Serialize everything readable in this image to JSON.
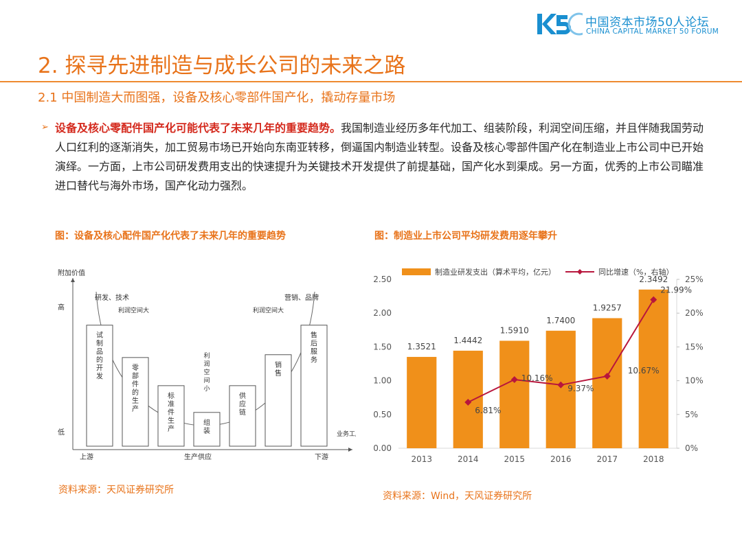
{
  "logo": {
    "mark": "K5",
    "name_cn": "中国资本市场50人论坛",
    "name_en": "CHINA CAPITAL MARKET 50 FORUM",
    "color": "#1a8fd0"
  },
  "header": {
    "title": "2. 探寻先进制造与成长公司的未来之路",
    "subtitle": "2.1 中国制造大而图强，设备及核心零部件国产化，撬动存量市场",
    "accent_color": "#e8731a"
  },
  "body": {
    "bullet": "➢",
    "highlight": "设备及核心零配件国产化可能代表了未来几年的重要趋势。",
    "text": "我国制造业经历多年代加工、组装阶段，利润空间压缩，并且伴随我国劳动人口红利的逐渐消失，加工贸易市场已开始向东南亚转移，倒逼国内制造业转型。设备及核心零部件国产化在制造业上市公司中已开始演绎。一方面，上市公司研发费用支出的快速提升为关键技术开发提供了前提基础，国产化水到渠成。另一方面，优秀的上市公司瞄准进口替代与海外市场，国产化动力强烈。"
  },
  "left_figure": {
    "caption": "图：设备及核心配件国产化代表了未来几年的重要趋势",
    "source": "资料来源：天风证券研究所",
    "y_axis_label": "附加价值",
    "y_high": "高",
    "y_low": "低",
    "x_axis_label": "业务工序",
    "x_left": "上游",
    "x_mid": "生产供应",
    "x_right": "下游",
    "top_left_label": "研发、技术",
    "top_right_label": "营销、品牌",
    "left_profit_label": "利润空间大",
    "right_profit_label": "利润空间大",
    "bars": [
      {
        "label": "试制品的开发",
        "level": 0.86
      },
      {
        "label": "零部件的生产",
        "level": 0.63
      },
      {
        "label": "标准件生产",
        "level": 0.43
      },
      {
        "label": "组装",
        "level": 0.24
      },
      {
        "label": "供应链",
        "level": 0.43
      },
      {
        "label": "销售",
        "level": 0.65
      },
      {
        "label": "售后服务",
        "level": 0.86
      }
    ],
    "center_label": "利润空间小"
  },
  "chart_data": {
    "type": "bar",
    "title": "图：制造业上市公司平均研发费用逐年攀升",
    "source": "资料来源：Wind，天风证券研究所",
    "categories": [
      "2013",
      "2014",
      "2015",
      "2016",
      "2017",
      "2018"
    ],
    "series": [
      {
        "name": "制造业研发支出（算术平均，亿元）",
        "type": "bar",
        "axis": "left",
        "color": "#f0901a",
        "values": [
          1.3521,
          1.4442,
          1.591,
          1.74,
          1.9257,
          2.3492
        ],
        "labels": [
          "1.3521",
          "1.4442",
          "1.5910",
          "1.7400",
          "1.9257",
          "2.3492"
        ]
      },
      {
        "name": "同比增速（%，右轴）",
        "type": "line",
        "axis": "right",
        "color": "#b8163c",
        "x": [
          "2014",
          "2015",
          "2016",
          "2017",
          "2018"
        ],
        "values": [
          6.81,
          10.16,
          9.37,
          10.67,
          21.99
        ],
        "labels": [
          "6.81%",
          "10.16%",
          "9.37%",
          "10.67%",
          "21.99%"
        ]
      }
    ],
    "y_left": {
      "min": 0,
      "max": 2.5,
      "ticks": [
        "0.00",
        "0.50",
        "1.00",
        "1.50",
        "2.00",
        "2.50"
      ]
    },
    "y_right": {
      "min": 0,
      "max": 25,
      "ticks": [
        "0%",
        "5%",
        "10%",
        "15%",
        "20%",
        "25%"
      ]
    },
    "legend_position": "top",
    "grid": false
  }
}
